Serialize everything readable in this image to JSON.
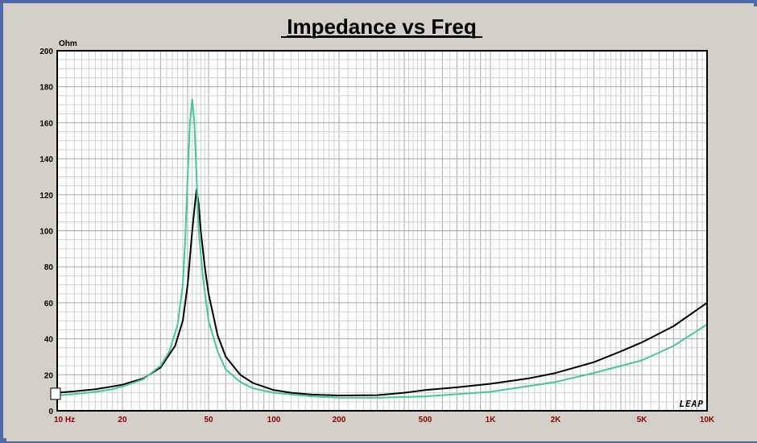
{
  "chart_data": {
    "type": "line",
    "title": "Impedance vs Freq",
    "ylabel": "Ohm",
    "xscale": "log",
    "xlim": [
      10,
      10000
    ],
    "ylim": [
      0,
      200
    ],
    "grid": true,
    "xticks": [
      {
        "value": 10,
        "label": "10  Hz"
      },
      {
        "value": 20,
        "label": "20"
      },
      {
        "value": 50,
        "label": "50"
      },
      {
        "value": 100,
        "label": "100"
      },
      {
        "value": 200,
        "label": "200"
      },
      {
        "value": 500,
        "label": "500"
      },
      {
        "value": 1000,
        "label": "1K"
      },
      {
        "value": 2000,
        "label": "2K"
      },
      {
        "value": 5000,
        "label": "5K"
      },
      {
        "value": 10000,
        "label": "10K"
      }
    ],
    "yticks": [
      0,
      20,
      40,
      60,
      80,
      100,
      120,
      140,
      160,
      180,
      200
    ],
    "watermark": "LEAP",
    "series": [
      {
        "color": "#000000",
        "points": [
          [
            10,
            10
          ],
          [
            12,
            10.8
          ],
          [
            15,
            12
          ],
          [
            18,
            13.5
          ],
          [
            20,
            14.5
          ],
          [
            25,
            18
          ],
          [
            30,
            24
          ],
          [
            35,
            36
          ],
          [
            38,
            50
          ],
          [
            40,
            70
          ],
          [
            42,
            100
          ],
          [
            43,
            112
          ],
          [
            44,
            123
          ],
          [
            45,
            115
          ],
          [
            46,
            100
          ],
          [
            48,
            80
          ],
          [
            50,
            65
          ],
          [
            55,
            42
          ],
          [
            60,
            30
          ],
          [
            70,
            20
          ],
          [
            80,
            15.5
          ],
          [
            100,
            11.5
          ],
          [
            120,
            10
          ],
          [
            150,
            9
          ],
          [
            200,
            8.5
          ],
          [
            300,
            8.7
          ],
          [
            400,
            10
          ],
          [
            500,
            11.5
          ],
          [
            700,
            13
          ],
          [
            1000,
            15
          ],
          [
            1500,
            18
          ],
          [
            2000,
            21
          ],
          [
            3000,
            27
          ],
          [
            4000,
            33
          ],
          [
            5000,
            38
          ],
          [
            7000,
            47
          ],
          [
            10000,
            60
          ]
        ]
      },
      {
        "color": "#40c8a0",
        "points": [
          [
            10,
            8.5
          ],
          [
            12,
            9.3
          ],
          [
            15,
            10.5
          ],
          [
            18,
            12
          ],
          [
            20,
            13.5
          ],
          [
            25,
            17.5
          ],
          [
            30,
            25
          ],
          [
            33,
            33
          ],
          [
            36,
            48
          ],
          [
            38,
            70
          ],
          [
            39,
            95
          ],
          [
            40,
            130
          ],
          [
            41,
            160
          ],
          [
            42,
            173
          ],
          [
            43,
            160
          ],
          [
            44,
            130
          ],
          [
            45,
            100
          ],
          [
            47,
            75
          ],
          [
            50,
            50
          ],
          [
            55,
            33
          ],
          [
            60,
            23
          ],
          [
            70,
            16
          ],
          [
            80,
            12.5
          ],
          [
            100,
            10
          ],
          [
            150,
            8
          ],
          [
            200,
            7.3
          ],
          [
            300,
            7.2
          ],
          [
            500,
            8
          ],
          [
            1000,
            10.5
          ],
          [
            2000,
            16
          ],
          [
            3000,
            21
          ],
          [
            5000,
            28
          ],
          [
            7000,
            36
          ],
          [
            10000,
            48
          ]
        ]
      }
    ]
  }
}
